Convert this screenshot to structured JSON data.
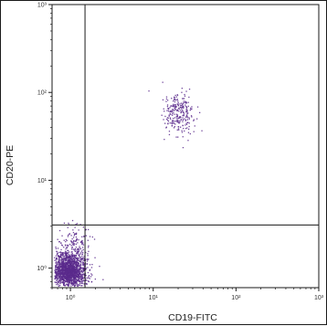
{
  "chart_data": {
    "type": "scatter",
    "title": "",
    "xlabel": "CD19-FITC",
    "ylabel": "CD20-PE",
    "x_scale": "log",
    "y_scale": "log",
    "xlim": [
      0.6,
      1000
    ],
    "ylim": [
      0.6,
      1000
    ],
    "x_tick_labels": [
      "10⁰",
      "10¹",
      "10²",
      "10³"
    ],
    "y_tick_labels": [
      "10⁰",
      "10¹",
      "10²",
      "10³"
    ],
    "x_ticks": [
      1,
      10,
      100,
      1000
    ],
    "y_ticks": [
      1,
      10,
      100,
      1000
    ],
    "quadrant_gate": {
      "x": 1.5,
      "y": 3.1
    },
    "grid": false,
    "point_color": "#5b2a8c",
    "populations": [
      {
        "name": "",
        "center_x": 0.95,
        "center_y": 0.95,
        "spread_log_x": 0.1,
        "spread_log_y": 0.1,
        "count": 1700
      },
      {
        "name": "",
        "center_x": 1.1,
        "center_y": 1.8,
        "spread_log_x": 0.1,
        "spread_log_y": 0.12,
        "count": 160
      },
      {
        "name": "",
        "center_x": 20,
        "center_y": 60,
        "spread_log_x": 0.1,
        "spread_log_y": 0.12,
        "count": 260
      }
    ]
  }
}
